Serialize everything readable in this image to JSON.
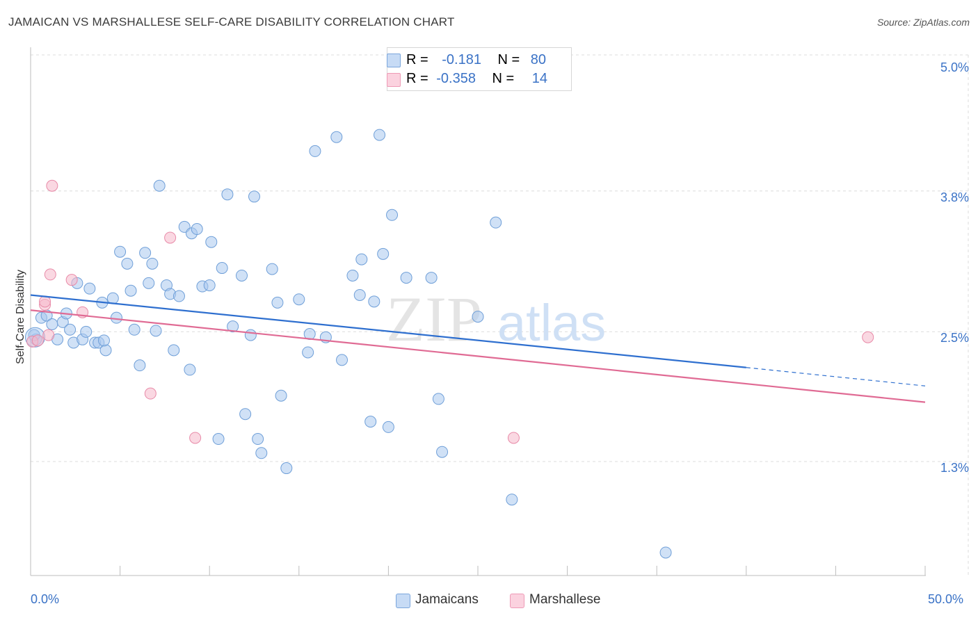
{
  "header": {
    "title": "JAMAICAN VS MARSHALLESE SELF-CARE DISABILITY CORRELATION CHART",
    "source": "Source: ZipAtlas.com"
  },
  "watermark": {
    "part1": "ZIP",
    "part2": "atlas"
  },
  "legend_stats": [
    {
      "r_label": "R =",
      "r_value": "-0.181",
      "n_label": "N =",
      "n_value": "80",
      "color": "#a9c8ef"
    },
    {
      "r_label": "R =",
      "r_value": "-0.358",
      "n_label": "N =",
      "n_value": "14",
      "color": "#f6b8ca"
    }
  ],
  "chart_data": {
    "type": "scatter",
    "title": "JAMAICAN VS MARSHALLESE SELF-CARE DISABILITY CORRELATION CHART",
    "xlabel": "",
    "ylabel": "Self-Care Disability",
    "xlim": [
      0,
      50
    ],
    "ylim": [
      0.0,
      5.2
    ],
    "x_tick_labels": [
      "0.0%",
      "50.0%"
    ],
    "y_ticks": [
      {
        "value": 1.3,
        "label": "1.3%"
      },
      {
        "value": 2.5,
        "label": "2.5%"
      },
      {
        "value": 3.8,
        "label": "3.8%"
      },
      {
        "value": 5.0,
        "label": "5.0%"
      }
    ],
    "grid": true,
    "legend_position": "bottom",
    "series": [
      {
        "name": "Jamaicans",
        "color": "#a9c8ef",
        "stroke": "#6f9fd8",
        "trend_color": "#2e6fcf",
        "trend": {
          "x0": 0,
          "y0": 2.89,
          "x1": 40,
          "y1": 2.22,
          "dashed_to_x": 50,
          "dashed_to_y": 2.05
        },
        "points": [
          [
            0.3,
            2.48
          ],
          [
            0.6,
            2.68
          ],
          [
            0.9,
            2.7
          ],
          [
            1.2,
            2.62
          ],
          [
            1.5,
            2.48
          ],
          [
            1.8,
            2.64
          ],
          [
            2.0,
            2.72
          ],
          [
            2.2,
            2.57
          ],
          [
            2.4,
            2.45
          ],
          [
            2.6,
            3.0
          ],
          [
            2.9,
            2.48
          ],
          [
            3.1,
            2.55
          ],
          [
            3.3,
            2.95
          ],
          [
            3.6,
            2.45
          ],
          [
            3.8,
            2.45
          ],
          [
            4.0,
            2.82
          ],
          [
            4.2,
            2.38
          ],
          [
            4.6,
            2.86
          ],
          [
            4.8,
            2.68
          ],
          [
            5.0,
            3.29
          ],
          [
            5.4,
            3.18
          ],
          [
            5.6,
            2.93
          ],
          [
            5.8,
            2.57
          ],
          [
            6.1,
            2.24
          ],
          [
            6.4,
            3.28
          ],
          [
            6.6,
            3.0
          ],
          [
            6.8,
            3.18
          ],
          [
            7.0,
            2.56
          ],
          [
            7.2,
            3.9
          ],
          [
            7.6,
            2.98
          ],
          [
            7.8,
            2.9
          ],
          [
            8.0,
            2.38
          ],
          [
            8.3,
            2.88
          ],
          [
            8.6,
            3.52
          ],
          [
            8.9,
            2.2
          ],
          [
            9.0,
            3.46
          ],
          [
            9.3,
            3.5
          ],
          [
            9.6,
            2.97
          ],
          [
            10.0,
            2.98
          ],
          [
            10.1,
            3.38
          ],
          [
            10.5,
            1.56
          ],
          [
            10.7,
            3.14
          ],
          [
            11.0,
            3.82
          ],
          [
            11.3,
            2.6
          ],
          [
            11.8,
            3.07
          ],
          [
            12.0,
            1.79
          ],
          [
            12.3,
            2.52
          ],
          [
            12.5,
            3.8
          ],
          [
            12.7,
            1.56
          ],
          [
            12.9,
            1.43
          ],
          [
            13.5,
            3.13
          ],
          [
            13.8,
            2.82
          ],
          [
            14.0,
            1.96
          ],
          [
            14.3,
            1.29
          ],
          [
            15.0,
            2.85
          ],
          [
            15.5,
            2.36
          ],
          [
            15.6,
            2.53
          ],
          [
            15.9,
            4.22
          ],
          [
            16.5,
            2.5
          ],
          [
            17.1,
            4.35
          ],
          [
            17.4,
            2.29
          ],
          [
            18.0,
            3.07
          ],
          [
            18.4,
            2.89
          ],
          [
            18.5,
            3.22
          ],
          [
            19.0,
            1.72
          ],
          [
            19.2,
            2.83
          ],
          [
            19.5,
            4.37
          ],
          [
            19.7,
            3.27
          ],
          [
            20.0,
            1.67
          ],
          [
            20.2,
            3.63
          ],
          [
            21.0,
            3.05
          ],
          [
            22.4,
            3.05
          ],
          [
            22.8,
            1.93
          ],
          [
            23.0,
            1.44
          ],
          [
            25.0,
            2.69
          ],
          [
            26.0,
            3.56
          ],
          [
            26.9,
            1.0
          ],
          [
            35.5,
            0.51
          ],
          [
            0.2,
            2.52
          ],
          [
            4.1,
            2.47
          ]
        ]
      },
      {
        "name": "Marshallese",
        "color": "#f6b8ca",
        "stroke": "#e88aa8",
        "trend_color": "#e06b94",
        "trend": {
          "x0": 0,
          "y0": 2.75,
          "x1": 50,
          "y1": 1.9
        },
        "points": [
          [
            0.1,
            2.46
          ],
          [
            0.4,
            2.47
          ],
          [
            0.8,
            2.8
          ],
          [
            0.8,
            2.83
          ],
          [
            1.0,
            2.52
          ],
          [
            1.1,
            3.08
          ],
          [
            1.2,
            3.9
          ],
          [
            2.3,
            3.03
          ],
          [
            2.9,
            2.73
          ],
          [
            6.7,
            1.98
          ],
          [
            7.8,
            3.42
          ],
          [
            9.2,
            1.57
          ],
          [
            27.0,
            1.57
          ],
          [
            46.8,
            2.5
          ]
        ]
      }
    ]
  }
}
